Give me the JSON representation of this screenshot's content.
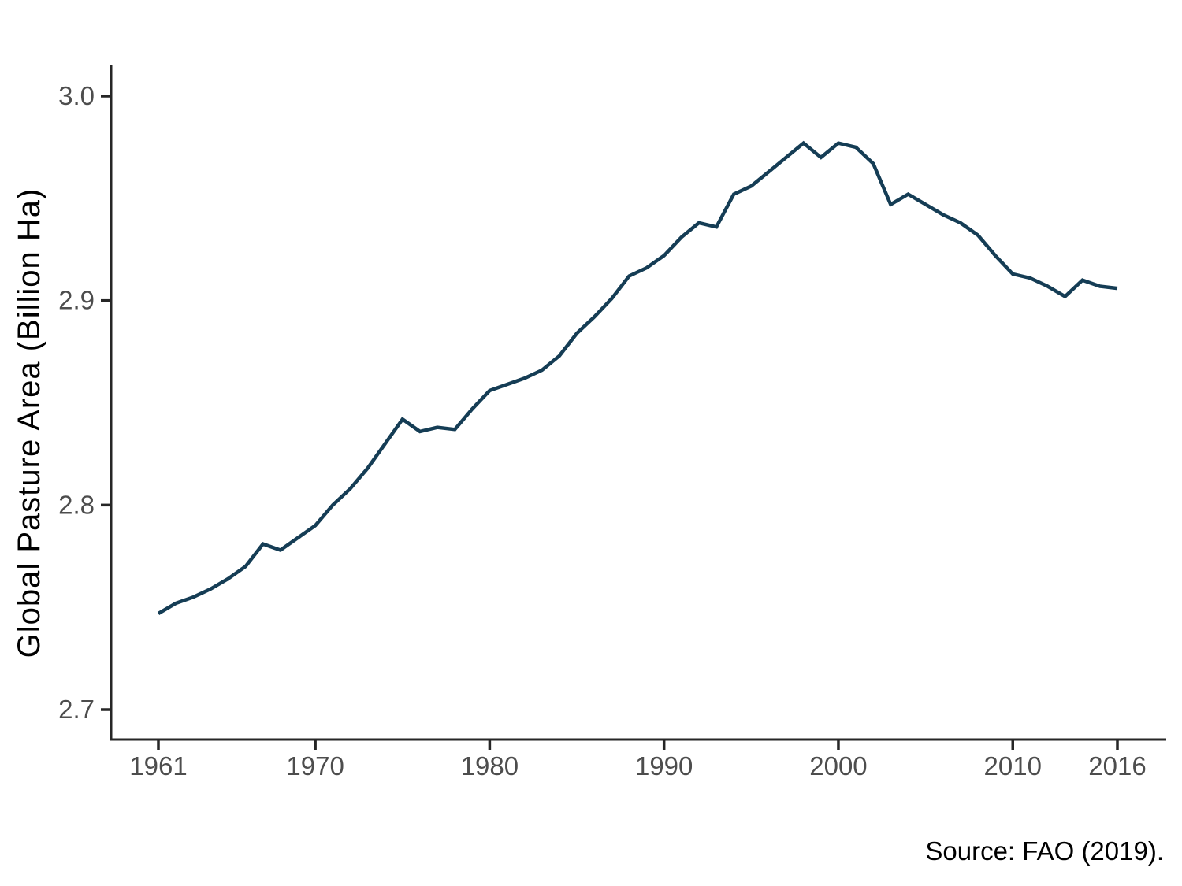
{
  "source": "Source: FAO (2019).",
  "chart_data": {
    "type": "line",
    "title": "",
    "xlabel": "",
    "ylabel": "Global Pasture Area (Billion Ha)",
    "ylim": [
      2.7,
      3.0
    ],
    "xlim": [
      1961,
      2016
    ],
    "grid": false,
    "legend": "none",
    "line_color": "#153D55",
    "axis_color": "#262626",
    "tick_label_color": "#4D4D4D",
    "title_color": "#000000",
    "x_ticks": [
      {
        "value": 1961,
        "label": "1961"
      },
      {
        "value": 1970,
        "label": "1970"
      },
      {
        "value": 1980,
        "label": "1980"
      },
      {
        "value": 1990,
        "label": "1990"
      },
      {
        "value": 2000,
        "label": "2000"
      },
      {
        "value": 2010,
        "label": "2010"
      },
      {
        "value": 2016,
        "label": "2016"
      }
    ],
    "y_ticks": [
      {
        "value": 2.7,
        "label": "2.7"
      },
      {
        "value": 2.8,
        "label": "2.8"
      },
      {
        "value": 2.9,
        "label": "2.9"
      },
      {
        "value": 3.0,
        "label": "3.0"
      }
    ],
    "x": [
      1961,
      1962,
      1963,
      1964,
      1965,
      1966,
      1967,
      1968,
      1969,
      1970,
      1971,
      1972,
      1973,
      1974,
      1975,
      1976,
      1977,
      1978,
      1979,
      1980,
      1981,
      1982,
      1983,
      1984,
      1985,
      1986,
      1987,
      1988,
      1989,
      1990,
      1991,
      1992,
      1993,
      1994,
      1995,
      1996,
      1997,
      1998,
      1999,
      2000,
      2001,
      2002,
      2003,
      2004,
      2005,
      2006,
      2007,
      2008,
      2009,
      2010,
      2011,
      2012,
      2013,
      2014,
      2015,
      2016
    ],
    "series": [
      {
        "name": "Global pasture area",
        "values": [
          2.747,
          2.752,
          2.755,
          2.759,
          2.764,
          2.77,
          2.781,
          2.778,
          2.784,
          2.79,
          2.8,
          2.808,
          2.818,
          2.83,
          2.842,
          2.836,
          2.838,
          2.837,
          2.847,
          2.856,
          2.859,
          2.862,
          2.866,
          2.873,
          2.884,
          2.892,
          2.901,
          2.912,
          2.916,
          2.922,
          2.931,
          2.938,
          2.936,
          2.952,
          2.956,
          2.963,
          2.97,
          2.977,
          2.97,
          2.977,
          2.975,
          2.967,
          2.947,
          2.952,
          2.947,
          2.942,
          2.938,
          2.932,
          2.922,
          2.913,
          2.911,
          2.907,
          2.902,
          2.91,
          2.907,
          2.906
        ]
      }
    ]
  }
}
